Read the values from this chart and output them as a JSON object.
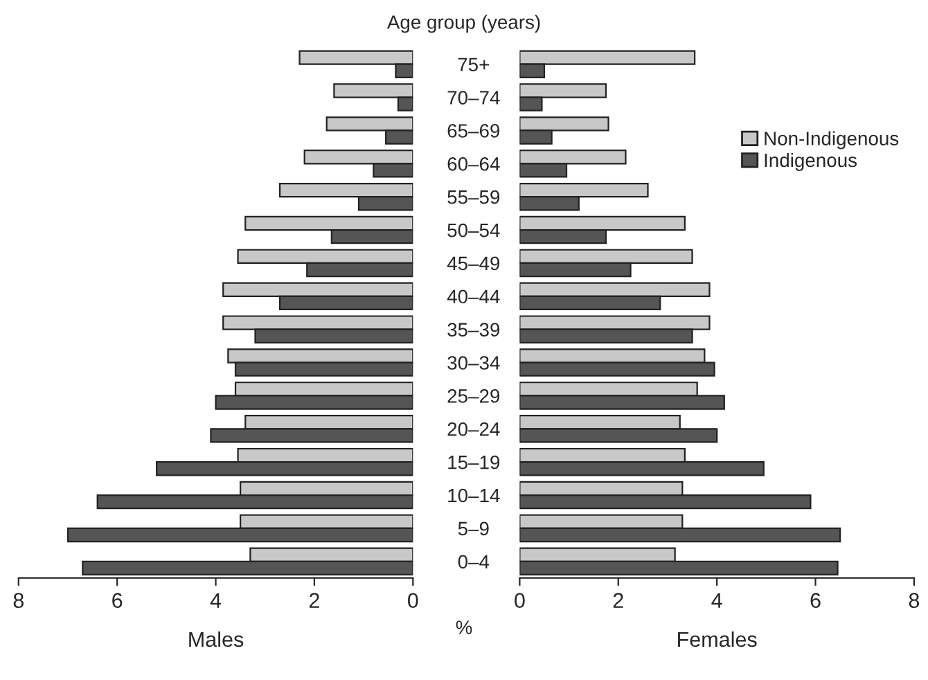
{
  "chart_data": [
    {
      "type": "bar",
      "orientation": "horizontal",
      "title": "Age group (years)",
      "xlabel": "Males",
      "annotations": [
        "%"
      ],
      "categories": [
        "75+",
        "70–74",
        "65–69",
        "60–64",
        "55–59",
        "50–54",
        "45–49",
        "40–44",
        "35–39",
        "30–34",
        "25–29",
        "20–24",
        "15–19",
        "10–14",
        "5–9",
        "0–4"
      ],
      "series": [
        {
          "color": "#c8c8c8",
          "values": [
            2.3,
            1.6,
            1.75,
            2.2,
            2.7,
            3.4,
            3.55,
            3.85,
            3.85,
            3.75,
            3.6,
            3.4,
            3.55,
            3.5,
            3.5,
            3.3
          ]
        },
        {
          "color": "#555555",
          "values": [
            0.35,
            0.3,
            0.55,
            0.8,
            1.1,
            1.65,
            2.15,
            2.7,
            3.2,
            3.6,
            4.0,
            4.1,
            5.2,
            6.4,
            7.0,
            6.7
          ]
        }
      ],
      "xlim": [
        8,
        0
      ],
      "xticks": [
        8,
        6,
        4,
        2,
        0
      ],
      "legend": false,
      "grid": false
    },
    {
      "type": "bar",
      "orientation": "horizontal",
      "xlabel": "Females",
      "series": [
        {
          "name": "Non-Indigenous",
          "color": "#c8c8c8",
          "values": [
            3.55,
            1.75,
            1.8,
            2.15,
            2.6,
            3.35,
            3.5,
            3.85,
            3.85,
            3.75,
            3.6,
            3.25,
            3.35,
            3.3,
            3.3,
            3.15
          ]
        },
        {
          "name": "Indigenous",
          "color": "#555555",
          "values": [
            0.5,
            0.45,
            0.65,
            0.95,
            1.2,
            1.75,
            2.25,
            2.85,
            3.5,
            3.95,
            4.15,
            4.0,
            4.95,
            5.9,
            6.5,
            6.45
          ]
        }
      ],
      "xlim": [
        0,
        8
      ],
      "xticks": [
        0,
        2,
        4,
        6,
        8
      ],
      "legend": "right",
      "grid": false
    }
  ]
}
